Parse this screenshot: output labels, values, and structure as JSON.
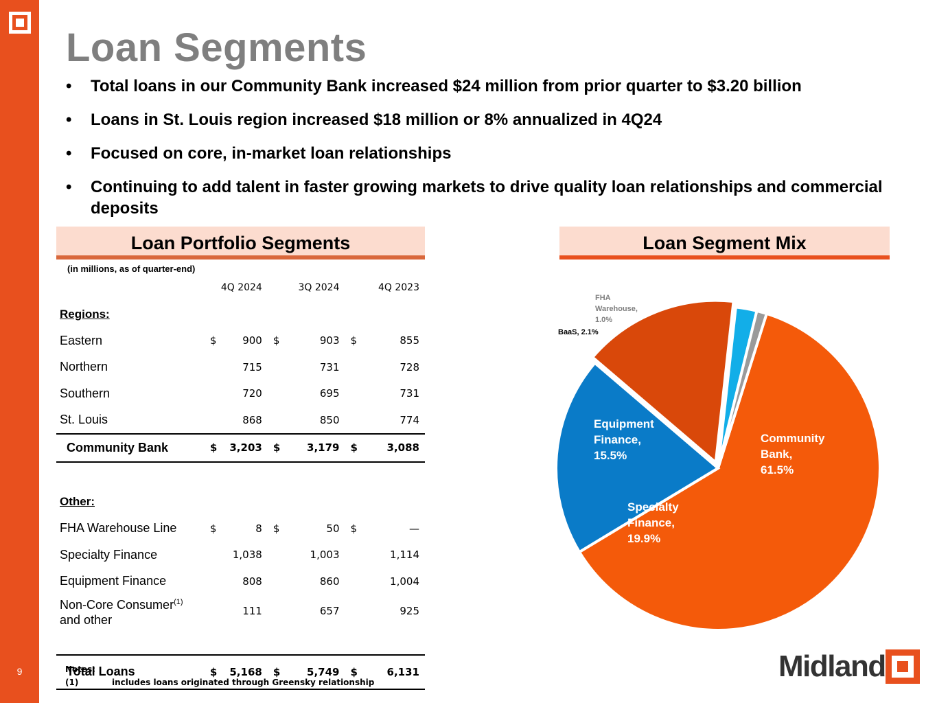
{
  "page_number": "9",
  "title": "Loan Segments",
  "bullets": [
    "Total loans in our Community Bank increased $24 million from prior quarter to $3.20 billion",
    "Loans in St. Louis region increased $18 million or 8% annualized in 4Q24",
    "Focused on core, in-market loan relationships",
    "Continuing to add talent in faster growing markets to drive quality loan relationships and commercial deposits"
  ],
  "portfolio": {
    "heading": "Loan Portfolio Segments",
    "units": "(in millions, as of quarter-end)",
    "columns": [
      "4Q 2024",
      "3Q 2024",
      "4Q 2023"
    ],
    "regions_label": "Regions:",
    "rows_regions": [
      {
        "label": "Eastern",
        "dollar": true,
        "values": [
          "900",
          "903",
          "855"
        ]
      },
      {
        "label": "Northern",
        "dollar": false,
        "values": [
          "715",
          "731",
          "728"
        ]
      },
      {
        "label": "Southern",
        "dollar": false,
        "values": [
          "720",
          "695",
          "731"
        ]
      },
      {
        "label": "St. Louis",
        "dollar": false,
        "values": [
          "868",
          "850",
          "774"
        ]
      }
    ],
    "community_total": {
      "label": "Community Bank",
      "values": [
        "3,203",
        "3,179",
        "3,088"
      ]
    },
    "other_label": "Other:",
    "rows_other": [
      {
        "label": "FHA Warehouse Line",
        "dollar": true,
        "values": [
          "8",
          "50",
          "—"
        ]
      },
      {
        "label": "Specialty Finance",
        "dollar": false,
        "values": [
          "1,038",
          "1,003",
          "1,114"
        ]
      },
      {
        "label": "Equipment Finance",
        "dollar": false,
        "values": [
          "808",
          "860",
          "1,004"
        ]
      }
    ],
    "noncore": {
      "label_line1": "Non-Core Consumer",
      "sup": "(1)",
      "label_line2": "and other",
      "values": [
        "111",
        "657",
        "925"
      ]
    },
    "grand_total": {
      "label": "Total Loans",
      "values": [
        "5,168",
        "5,749",
        "6,131"
      ]
    },
    "dollar_sign": "$"
  },
  "notes": {
    "heading": "Notes:",
    "marker": "(1)",
    "text": "includes loans originated through Greensky relationship"
  },
  "mix": {
    "heading": "Loan Segment Mix"
  },
  "chart_data": {
    "type": "pie",
    "title": "Loan Segment Mix",
    "slices": [
      {
        "label_lines": [
          "Community",
          "Bank,",
          "61.5%"
        ],
        "value": 61.5,
        "color": "#f45a0a"
      },
      {
        "label_lines": [
          "Specialty",
          "Finance,",
          "19.9%"
        ],
        "value": 19.9,
        "color": "#0a7bc8"
      },
      {
        "label_lines": [
          "Equipment",
          "Finance,",
          "15.5%"
        ],
        "value": 15.5,
        "color": "#d9480a"
      },
      {
        "label_lines": [
          "BaaS, 2.1%"
        ],
        "value": 2.1,
        "color": "#12aee8"
      },
      {
        "label_lines": [
          "FHA",
          "Warehouse,",
          "1.0%"
        ],
        "value": 1.0,
        "color": "#9a9a9a"
      }
    ]
  },
  "brand": {
    "name": "Midland"
  },
  "colors": {
    "accent": "#e8501e",
    "header_fill": "#fcdccf",
    "title_gray": "#7f7f7f"
  }
}
